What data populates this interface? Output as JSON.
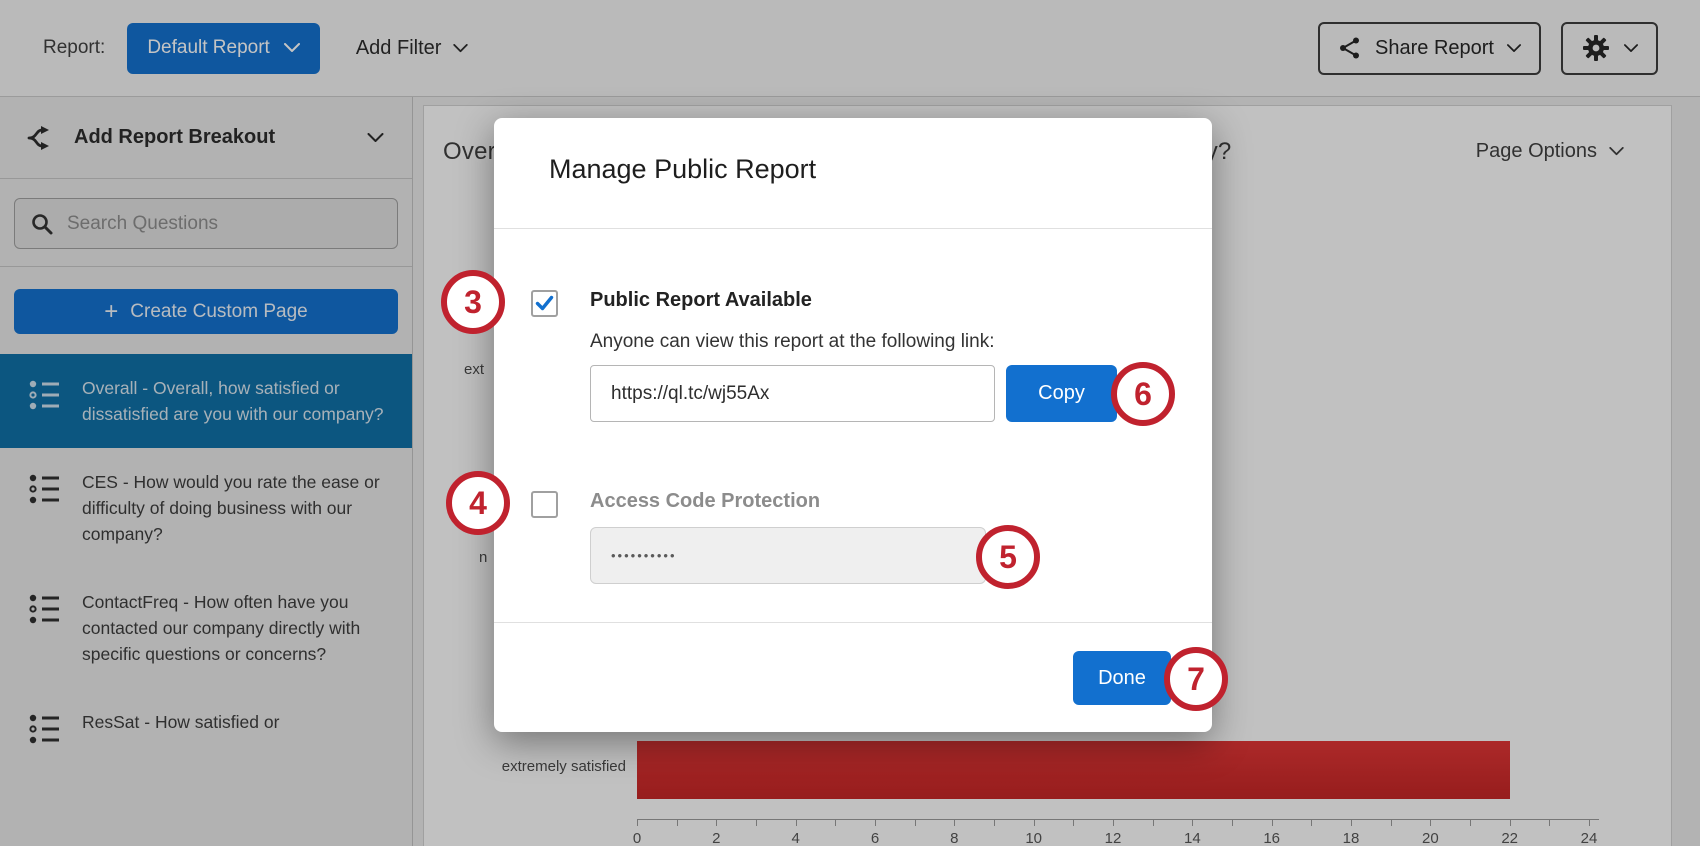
{
  "topbar": {
    "report_label": "Report:",
    "default_report": "Default Report",
    "add_filter": "Add Filter",
    "share_report": "Share Report"
  },
  "sidebar": {
    "breakout_label": "Add Report Breakout",
    "search_placeholder": "Search Questions",
    "plus": "+",
    "create_custom_page": "Create Custom Page",
    "items": [
      {
        "label": "Overall - Overall, how satisfied or dissatisfied are you with our company?",
        "selected": true
      },
      {
        "label": "CES - How would you rate the ease or difficulty of doing business with our company?",
        "selected": false
      },
      {
        "label": "ContactFreq - How often have you contacted our company directly with specific questions or concerns?",
        "selected": false
      },
      {
        "label": "ResSat - How satisfied or",
        "selected": false
      }
    ]
  },
  "main": {
    "title": "Overall - Overall, how satisfied or dissatisfied are you with our company?",
    "page_options": "Page Options"
  },
  "chart_data": {
    "type": "bar",
    "orientation": "horizontal",
    "title": "Overall - Overall, how satisfied or dissatisfied are you with our company?",
    "categories": [
      "extremely satisfied"
    ],
    "values": [
      22
    ],
    "clipped_category_fragments": [
      "ext",
      "n"
    ],
    "x_ticks": [
      0,
      2,
      4,
      6,
      8,
      10,
      12,
      14,
      16,
      18,
      20,
      22,
      24
    ],
    "xlim": [
      0,
      24
    ],
    "grid": false,
    "bar_color": "#c42424",
    "tick_label_color": "#555555"
  },
  "modal": {
    "title": "Manage Public Report",
    "public_report": {
      "label": "Public Report Available",
      "checked": true,
      "description": "Anyone can view this report at the following link:",
      "link": "https://ql.tc/wj55Ax",
      "copy_label": "Copy"
    },
    "access_code": {
      "label": "Access Code Protection",
      "checked": false,
      "masked_value": "••••••••••"
    },
    "done_label": "Done"
  },
  "annotations": {
    "badges": [
      "3",
      "4",
      "5",
      "6",
      "7"
    ]
  },
  "colors": {
    "primary_blue": "#1270cf",
    "selected_item_blue": "#0e6fa6",
    "badge_red": "#c0222e",
    "bar_red": "#c42424"
  }
}
